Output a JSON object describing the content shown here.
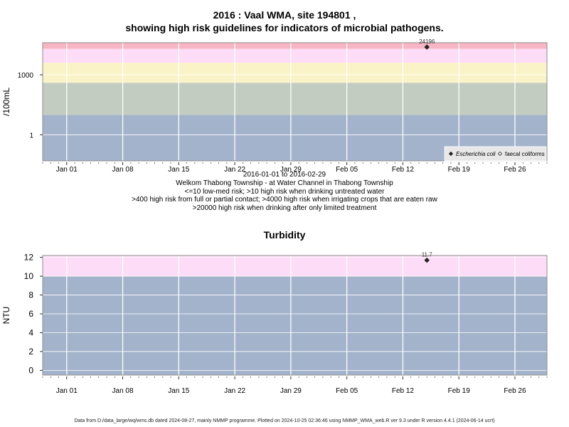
{
  "header": {
    "title_line1": "2016 : Vaal WMA, site 194801 ,",
    "title_line2": "showing high risk guidelines for indicators of microbial pathogens."
  },
  "footer": "Data from D:/data_large/wq/wms.db dated 2024-08-27, mainly NMMP programme. Plotted on 2024-10-25 02:36:46 using NMMP_WMA_web.R ver 9.3 under R version 4.4.1 (2024-06-14 ucrt)",
  "chart_data": [
    {
      "type": "scatter",
      "title": "",
      "subtitle": "2016-01-01 to 2016-02-29",
      "caption": [
        "Welkom Thabong Township - at Water Channel in Thabong Township",
        "<=10 low-med risk; >10 high risk when drinking untreated water",
        ">400 high risk from full or partial contact; >4000 high risk when irrigating crops that are eaten raw",
        ">20000 high risk when drinking after only limited treatment"
      ],
      "xlabel": "",
      "ylabel": "/100mL",
      "y_scale": "log10",
      "x_range": [
        "2015-12-29",
        "2016-03-01"
      ],
      "ylim": [
        0.05,
        40000
      ],
      "x_tick_labels": [
        "Jan 01",
        "Jan 08",
        "Jan 15",
        "Jan 22",
        "Jan 29",
        "Feb 05",
        "Feb 12",
        "Feb 19",
        "Feb 26"
      ],
      "x_ticks": [
        "2016-01-01",
        "2016-01-08",
        "2016-01-15",
        "2016-01-22",
        "2016-01-29",
        "2016-02-05",
        "2016-02-12",
        "2016-02-19",
        "2016-02-26"
      ],
      "y_ticks": [
        1,
        1000
      ],
      "y_tick_labels": [
        "1",
        "1000"
      ],
      "bands": [
        {
          "from": 0.05,
          "to": 10,
          "color": "#a3b3cb"
        },
        {
          "from": 10,
          "to": 400,
          "color": "#c3ccc0"
        },
        {
          "from": 400,
          "to": 4000,
          "color": "#fbf3c8"
        },
        {
          "from": 4000,
          "to": 20000,
          "color": "#fcdcf6"
        },
        {
          "from": 20000,
          "to": 40000,
          "color": "#f8b6c4"
        }
      ],
      "grid": true,
      "legend_position": "bottom-right",
      "legend": [
        {
          "label": "Escherichia coli",
          "marker": "filled-diamond",
          "italic": true
        },
        {
          "label": "faecal coliforms",
          "marker": "open-diamond",
          "italic": false
        }
      ],
      "series": [
        {
          "name": "Escherichia coli",
          "marker": "filled-diamond",
          "points": [
            {
              "x": "2016-02-15",
              "y": 24196,
              "label": "24196"
            }
          ]
        },
        {
          "name": "faecal coliforms",
          "marker": "open-diamond",
          "points": []
        }
      ]
    },
    {
      "type": "scatter",
      "title": "Turbidity",
      "xlabel": "",
      "ylabel": "NTU",
      "y_scale": "linear",
      "x_range": [
        "2015-12-29",
        "2016-03-01"
      ],
      "ylim": [
        -0.5,
        12.2
      ],
      "x_tick_labels": [
        "Jan 01",
        "Jan 08",
        "Jan 15",
        "Jan 22",
        "Jan 29",
        "Feb 05",
        "Feb 12",
        "Feb 19",
        "Feb 26"
      ],
      "x_ticks": [
        "2016-01-01",
        "2016-01-08",
        "2016-01-15",
        "2016-01-22",
        "2016-01-29",
        "2016-02-05",
        "2016-02-12",
        "2016-02-19",
        "2016-02-26"
      ],
      "y_ticks": [
        0,
        2,
        4,
        6,
        8,
        10,
        12
      ],
      "y_tick_labels": [
        "0",
        "2",
        "4",
        "6",
        "8",
        "10",
        "12"
      ],
      "bands": [
        {
          "from": -0.5,
          "to": 10,
          "color": "#a3b3cb"
        },
        {
          "from": 10,
          "to": 12.2,
          "color": "#fcdcf6"
        }
      ],
      "grid": true,
      "series": [
        {
          "name": "",
          "marker": "filled-diamond",
          "points": [
            {
              "x": "2016-02-15",
              "y": 11.7,
              "label": "11.7"
            }
          ]
        }
      ]
    }
  ]
}
